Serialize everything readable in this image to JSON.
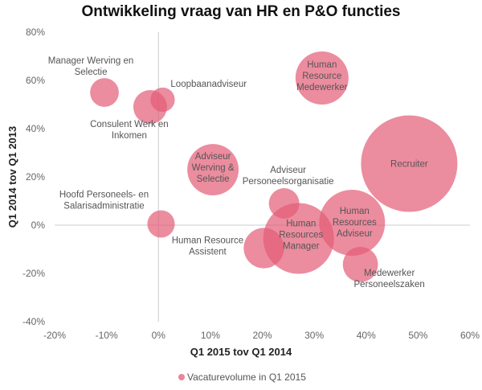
{
  "chart_data": {
    "type": "bubble",
    "title": "Ontwikkeling vraag van HR en P&O functies",
    "xlabel": "Q1 2015 tov Q1 2014",
    "ylabel": "Q1 2014 tov Q1 2013",
    "xlim": [
      -20,
      60
    ],
    "ylim": [
      -40,
      80
    ],
    "x_ticks": [
      "-20%",
      "-10%",
      "0%",
      "10%",
      "20%",
      "30%",
      "40%",
      "50%",
      "60%"
    ],
    "y_ticks": [
      "80%",
      "60%",
      "40%",
      "20%",
      "0%",
      "-20%",
      "-40%"
    ],
    "grid": false,
    "legend": {
      "position": "bottom",
      "entries": [
        "Vacaturevolume in Q1 2015"
      ]
    },
    "bubble_color": "#e45b76",
    "size_note_units": "relative",
    "points": [
      {
        "label": "Manager Werving en Selectie",
        "x": -10.4,
        "y": 55,
        "size": 3.2
      },
      {
        "label": "Consulent Werk en Inkomen",
        "x": -1.6,
        "y": 49,
        "size": 4.4
      },
      {
        "label": "Loopbaanadviseur",
        "x": 0.8,
        "y": 52,
        "size": 2.3
      },
      {
        "label": "Human Resource Medewerker",
        "x": 31.5,
        "y": 61,
        "size": 10.9
      },
      {
        "label": "Recruiter",
        "x": 48.3,
        "y": 25.5,
        "size": 36
      },
      {
        "label": "Adviseur Werving & Selectie",
        "x": 10.5,
        "y": 23,
        "size": 10.2
      },
      {
        "label": "Adviseur Personeelsorganisatie",
        "x": 24.2,
        "y": 9,
        "size": 3.6
      },
      {
        "label": "Hoofd Personeels- en Salarisadministratie",
        "x": 0.5,
        "y": 0.5,
        "size": 2.9
      },
      {
        "label": "Human Resources Manager",
        "x": 27,
        "y": -5.5,
        "size": 19.4
      },
      {
        "label": "Human Resources Adviseur",
        "x": 37.3,
        "y": 1,
        "size": 16.8
      },
      {
        "label": "Human Resource Assistent",
        "x": 20.3,
        "y": -9.5,
        "size": 6.3
      },
      {
        "label": "Medewerker Personeelszaken",
        "x": 38.9,
        "y": -16.3,
        "size": 4.8
      }
    ]
  }
}
